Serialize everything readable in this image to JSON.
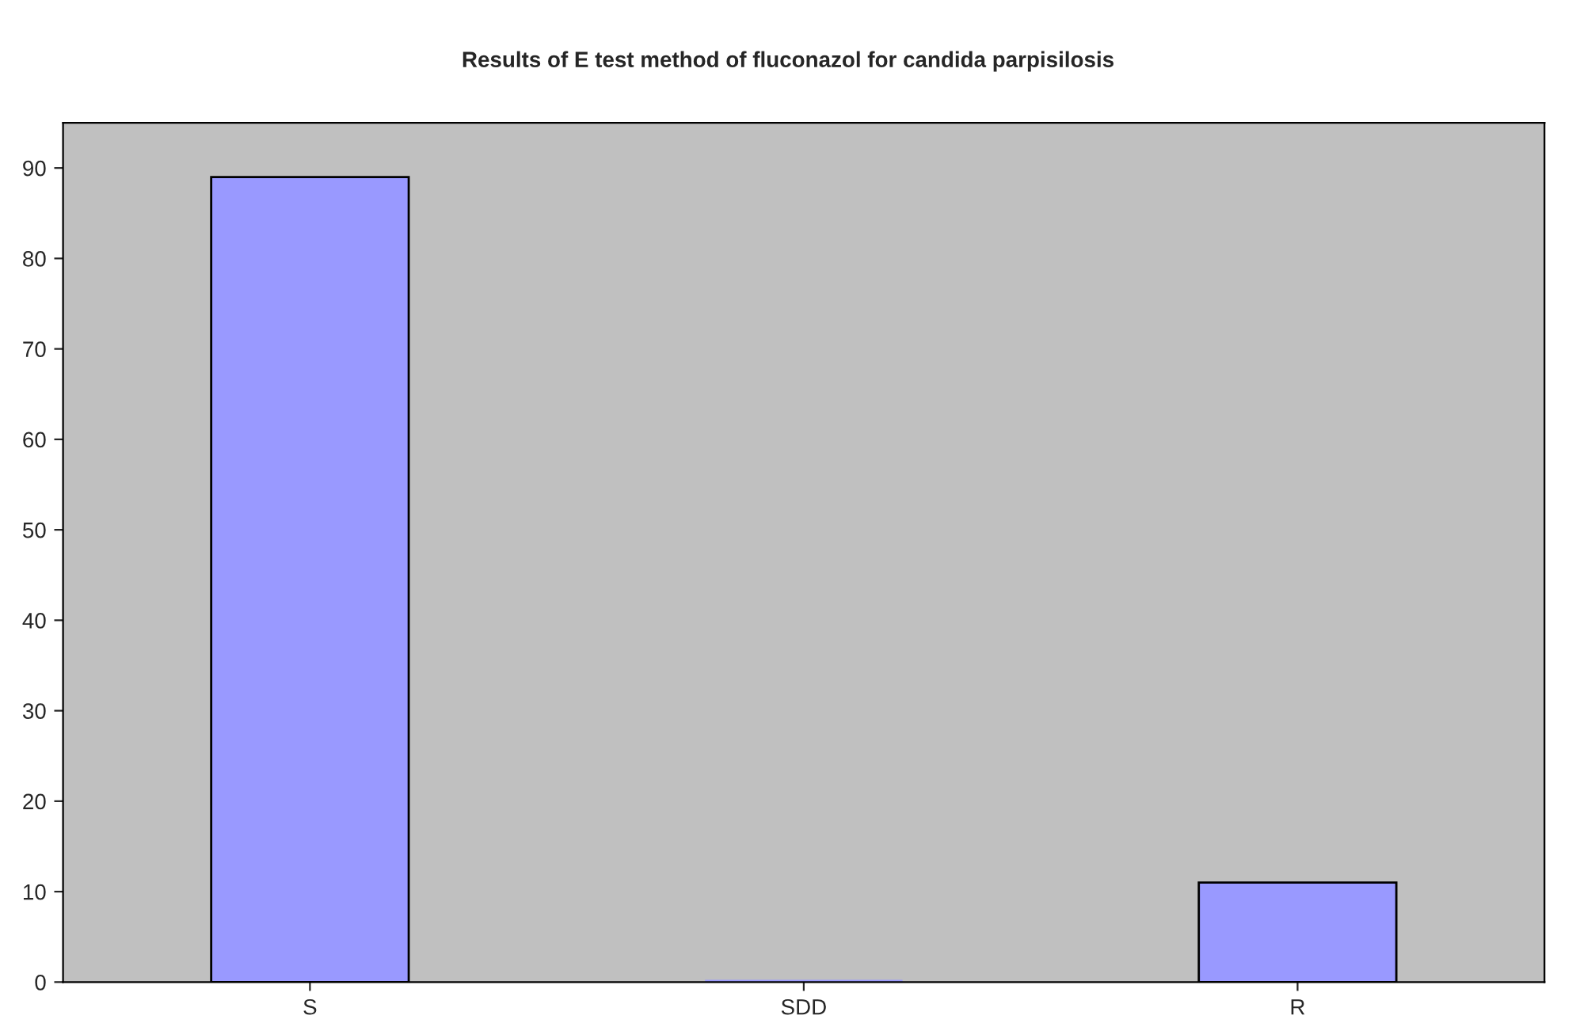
{
  "chart_data": {
    "type": "bar",
    "title": "Results of E test method of fluconazol for candida parpisilosis",
    "categories": [
      "S",
      "SDD",
      "R"
    ],
    "values": [
      89,
      0,
      11
    ],
    "color": "#9999ff",
    "ylim": [
      0,
      95
    ],
    "yticks": [
      0,
      10,
      20,
      30,
      40,
      50,
      60,
      70,
      80,
      90
    ],
    "grid": false,
    "legend": false
  }
}
